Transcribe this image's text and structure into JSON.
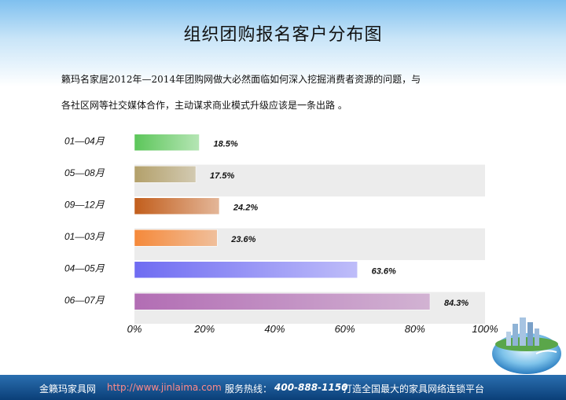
{
  "title": "组织团购报名客户分布图",
  "paragraph": {
    "line1": "籁玛名家居2012年—2014年团购网做大必然面临如何深入挖掘消费者资源的问题，与",
    "line2": "各社区网等社交媒体合作，主动谋求商业模式升级应该是一条出路 。"
  },
  "chart_data": {
    "type": "bar",
    "orientation": "horizontal",
    "categories": [
      "01—04月",
      "05—08月",
      "09—12月",
      "01—03月",
      "04—05月",
      "06—07月"
    ],
    "values": [
      18.5,
      17.5,
      24.2,
      23.6,
      63.6,
      84.3
    ],
    "value_labels": [
      "18.5%",
      "17.5%",
      "24.2%",
      "23.6%",
      "63.6%",
      "84.3%"
    ],
    "xlim": [
      0,
      100
    ],
    "x_ticks": [
      "0%",
      "20%",
      "40%",
      "60%",
      "80%",
      "100%"
    ],
    "bar_colors": [
      "#5cc65a",
      "#b3a06a",
      "#c25e1c",
      "#f5893a",
      "#6f6cf2",
      "#b26db4"
    ],
    "band_color": "#ececec",
    "grid": false
  },
  "footer": {
    "company": "金籁玛家具网",
    "url": "http://www.jinlaima.com",
    "hotline_label": "服务热线：",
    "hotline": "400-888-1150",
    "slogan": "打造全国最大的家具网络连锁平台"
  }
}
